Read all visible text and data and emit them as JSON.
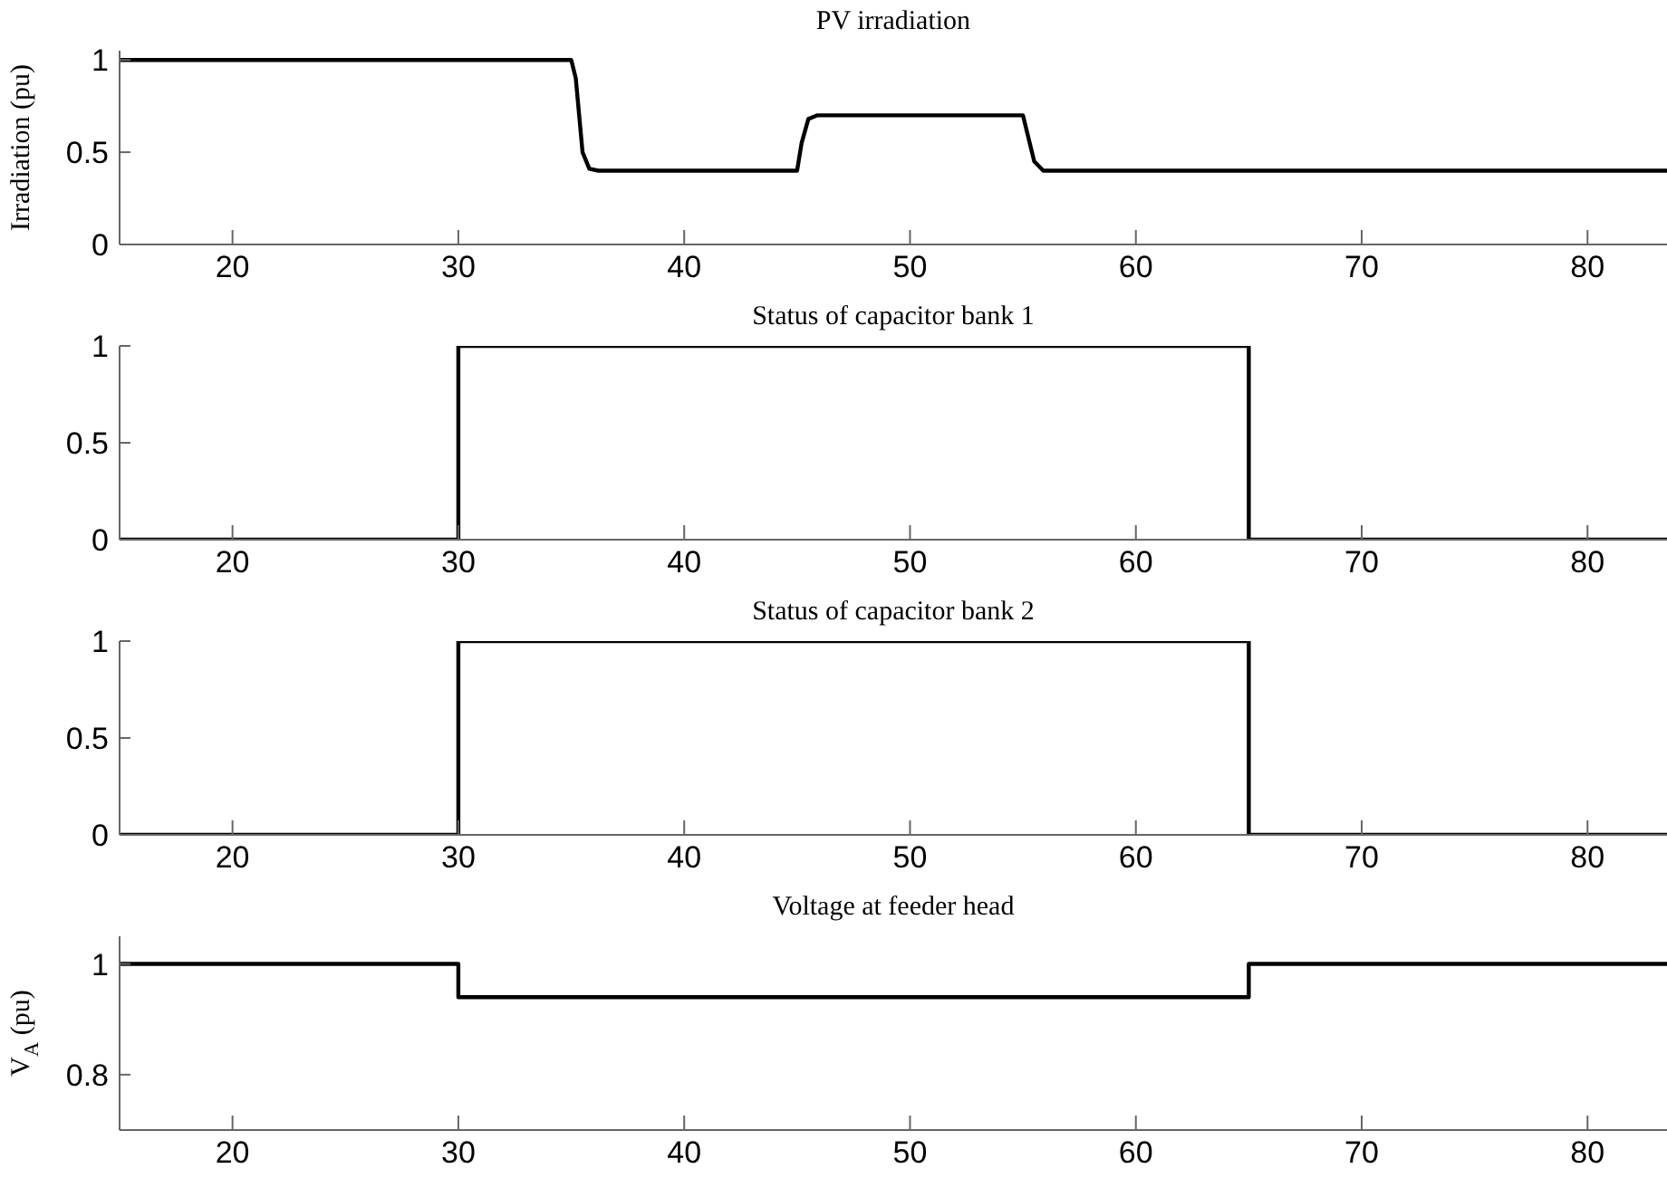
{
  "chart_data": [
    {
      "type": "line",
      "title": "PV irradiation",
      "ylabel": "Irradiation (pu)",
      "color": "#000000",
      "marker": "none",
      "grid": false,
      "x": [
        15,
        35,
        35.2,
        35.5,
        35.8,
        36.2,
        45,
        45.2,
        45.5,
        45.9,
        55,
        55.2,
        55.5,
        55.9,
        84
      ],
      "values": [
        1,
        1,
        0.9,
        0.5,
        0.41,
        0.4,
        0.4,
        0.55,
        0.68,
        0.7,
        0.7,
        0.6,
        0.45,
        0.4,
        0.4
      ],
      "xlim": [
        15,
        84
      ],
      "xticks": [
        20,
        30,
        40,
        50,
        60,
        70,
        80
      ],
      "ylim": [
        0,
        1.05
      ],
      "yticks": [
        0,
        0.5,
        1
      ]
    },
    {
      "type": "step",
      "title": "Status of capacitor bank 1",
      "color": "#000000",
      "marker": "none",
      "grid": false,
      "x": [
        15,
        30,
        65,
        84
      ],
      "values": [
        0,
        1,
        0,
        0
      ],
      "xlim": [
        15,
        84
      ],
      "xticks": [
        20,
        30,
        40,
        50,
        60,
        70,
        80
      ],
      "ylim": [
        0,
        1
      ],
      "yticks": [
        0,
        0.5,
        1
      ]
    },
    {
      "type": "step",
      "title": "Status of capacitor bank 2",
      "color": "#000000",
      "marker": "none",
      "grid": false,
      "x": [
        15,
        30,
        65,
        84
      ],
      "values": [
        0,
        1,
        0,
        0
      ],
      "xlim": [
        15,
        84
      ],
      "xticks": [
        20,
        30,
        40,
        50,
        60,
        70,
        80
      ],
      "ylim": [
        0,
        1
      ],
      "yticks": [
        0,
        0.5,
        1
      ]
    },
    {
      "type": "step",
      "title": "Voltage at feeder head",
      "ylabel": "V$_{A}$ (pu)",
      "color": "#000000",
      "marker": "none",
      "grid": false,
      "x": [
        15,
        30,
        65,
        84
      ],
      "values": [
        1,
        0.94,
        1,
        1
      ],
      "xlim": [
        15,
        84
      ],
      "xticks": [
        20,
        30,
        40,
        50,
        60,
        70,
        80
      ],
      "ylim": [
        0.7,
        1.05
      ],
      "yticks": [
        0.8,
        1
      ]
    }
  ]
}
